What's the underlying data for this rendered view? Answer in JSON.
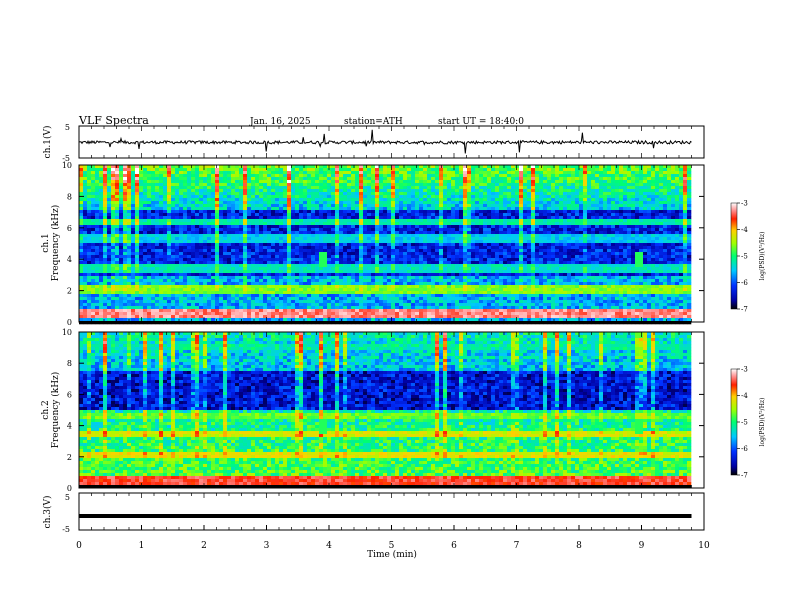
{
  "header": {
    "title": "VLF Spectra",
    "date": "Jan. 16, 2025",
    "station": "station=ATH",
    "start_ut": "start UT = 18:40:0"
  },
  "chart_data": [
    {
      "type": "line",
      "ylabel": "ch.1(V)",
      "ylim": [
        -5,
        5
      ],
      "y_ticks": [
        "5",
        "-5"
      ],
      "xlim": [
        0,
        10
      ],
      "description_values": {
        "baseline": -0.1,
        "typical_amplitude": 0.8,
        "spike_amplitude": 3.8
      }
    },
    {
      "type": "heatmap",
      "ylabel": "ch.1\nFrequency (kHz)",
      "ylabel_line1": "ch.1",
      "ylabel_line2": "Frequency (kHz)",
      "ylim": [
        0,
        10
      ],
      "y_ticks": [
        "0",
        "2",
        "4",
        "6",
        "8",
        "10"
      ],
      "x_range_min": [
        0,
        9.8
      ],
      "colorbar": {
        "label": "log(PSD)(V²/Hz)",
        "range": [
          -7,
          -3
        ],
        "ticks": [
          "-3",
          "-4",
          "-5",
          "-6",
          "-7"
        ]
      },
      "bands": [
        {
          "freq_khz": 0.5,
          "level": -3.3
        },
        {
          "freq_khz": 2.1,
          "level": -4.6
        },
        {
          "freq_khz": 3.4,
          "level": -5.3
        },
        {
          "freq_khz": 5.3,
          "level": -5.5
        },
        {
          "freq_khz": 6.4,
          "level": -5.2
        },
        {
          "freq_khz": 9.0,
          "level": -5.3
        }
      ],
      "bursts_min": [
        3.9,
        8.95
      ]
    },
    {
      "type": "heatmap",
      "ylabel_line1": "ch.2",
      "ylabel_line2": "Frequency (kHz)",
      "ylim": [
        0,
        10
      ],
      "y_ticks": [
        "0",
        "2",
        "4",
        "6",
        "8",
        "10"
      ],
      "x_range_min": [
        0,
        9.8
      ],
      "colorbar": {
        "label": "log(PSD)(V²/Hz)",
        "range": [
          -7,
          -3
        ],
        "ticks": [
          "-3",
          "-4",
          "-5",
          "-6",
          "-7"
        ]
      },
      "bands": [
        {
          "freq_khz": 0.5,
          "level": -3.5
        },
        {
          "freq_khz": 2.1,
          "level": -4.2
        },
        {
          "freq_khz": 3.5,
          "level": -4.3
        },
        {
          "freq_khz": 4.6,
          "level": -4.7
        },
        {
          "freq_khz": 9.0,
          "level": -5.3
        }
      ],
      "bursts_min": [
        3.9,
        8.95
      ]
    },
    {
      "type": "line",
      "ylabel": "ch.3(V)",
      "ylim": [
        -5,
        5
      ],
      "y_ticks": [
        "5",
        "-5"
      ],
      "xlim": [
        0,
        10
      ],
      "values_constant": -1.2
    }
  ],
  "x_axis": {
    "label": "Time (min)",
    "ticks": [
      "0",
      "1",
      "2",
      "3",
      "4",
      "5",
      "6",
      "7",
      "8",
      "9",
      "10"
    ],
    "xlim": [
      0,
      10
    ]
  },
  "colors": {
    "axis": "#000000",
    "signal": "#000000"
  }
}
